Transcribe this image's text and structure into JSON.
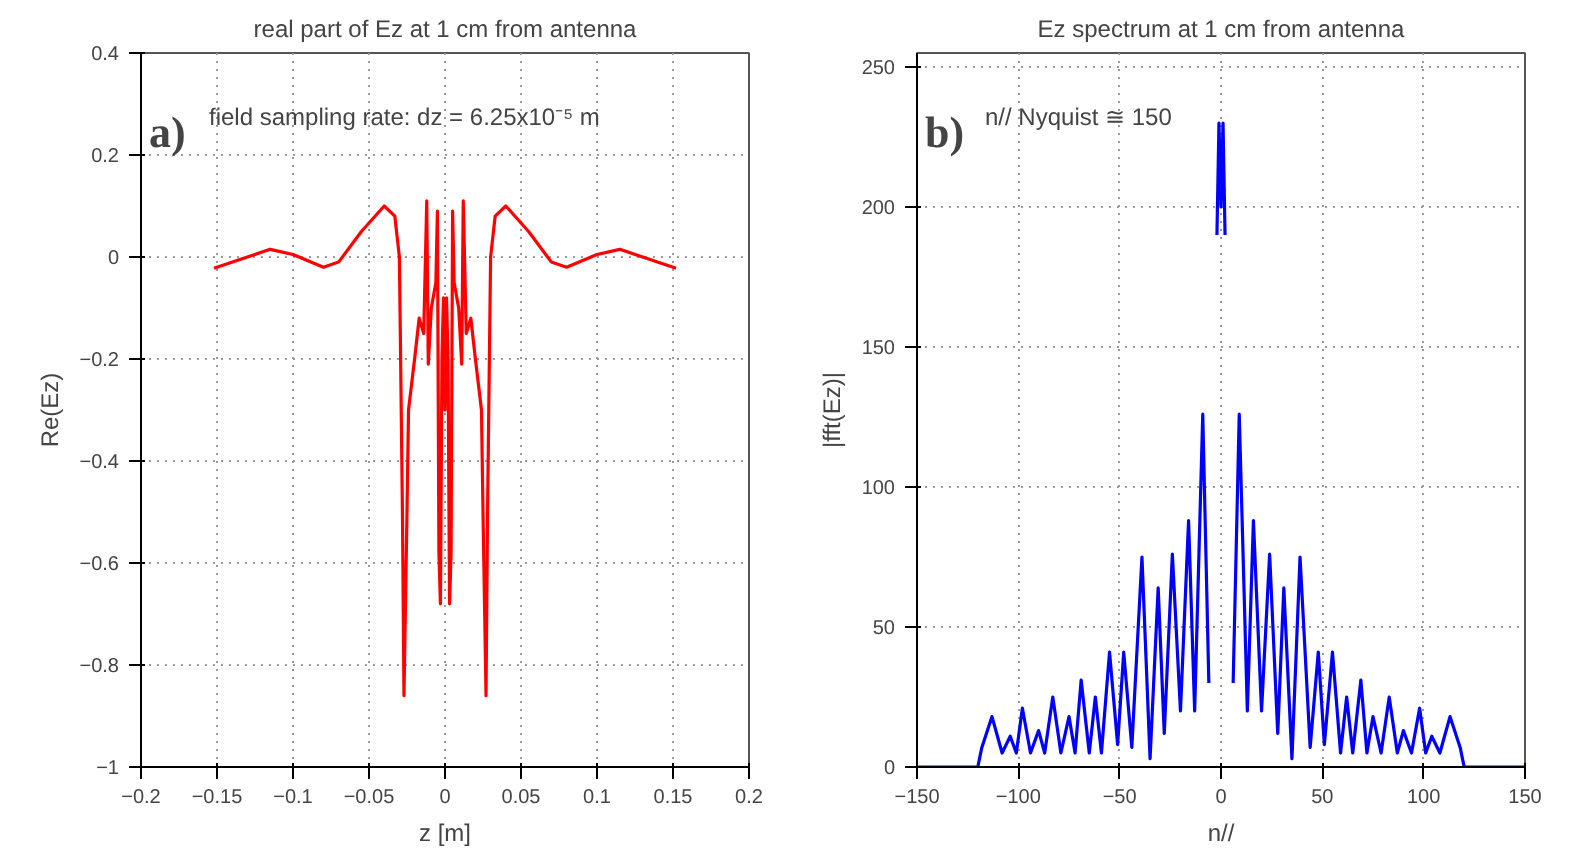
{
  "chart_data": [
    {
      "type": "line",
      "title": "real part of Ez at 1 cm from antenna",
      "xlabel": "z [m]",
      "ylabel": "Re(Ez)",
      "annotations": [
        "a)",
        "field sampling rate: dz = 6.25x10⁻⁵ m"
      ],
      "xlim": [
        -0.2,
        0.2
      ],
      "ylim": [
        -1,
        0.4
      ],
      "xticks": [
        -0.2,
        -0.15,
        -0.1,
        -0.05,
        0,
        0.05,
        0.1,
        0.15,
        0.2
      ],
      "yticks": [
        -1,
        -0.8,
        -0.6,
        -0.4,
        -0.2,
        0,
        0.2,
        0.4
      ],
      "grid": true,
      "line_style": "solid",
      "marker": "none",
      "series": [
        {
          "color": "#ff0000",
          "x": [
            -0.152,
            -0.13,
            -0.115,
            -0.1,
            -0.08,
            -0.07,
            -0.055,
            -0.04,
            -0.033,
            -0.03,
            -0.028,
            -0.027,
            -0.025,
            -0.024,
            -0.022,
            -0.02,
            -0.017,
            -0.014,
            -0.012,
            -0.011,
            -0.009,
            -0.006,
            -0.005,
            -0.004,
            -0.003,
            -0.002,
            -0.001,
            0,
            0.001,
            0.002,
            0.003,
            0.004,
            0.005,
            0.006,
            0.009,
            0.011,
            0.012,
            0.014,
            0.017,
            0.02,
            0.022,
            0.024,
            0.025,
            0.027,
            0.028,
            0.03,
            0.033,
            0.04,
            0.055,
            0.07,
            0.08,
            0.1,
            0.115,
            0.13,
            0.152
          ],
          "values": [
            -0.022,
            0.0,
            0.015,
            0.005,
            -0.02,
            -0.01,
            0.05,
            0.1,
            0.08,
            0.0,
            -0.5,
            -0.86,
            -0.5,
            -0.3,
            -0.25,
            -0.2,
            -0.12,
            -0.15,
            0.11,
            -0.21,
            -0.1,
            -0.05,
            0.09,
            -0.58,
            -0.68,
            -0.2,
            -0.08,
            -0.3,
            -0.08,
            -0.2,
            -0.68,
            -0.58,
            0.09,
            -0.05,
            -0.1,
            -0.21,
            0.11,
            -0.15,
            -0.12,
            -0.2,
            -0.25,
            -0.3,
            -0.5,
            -0.86,
            -0.5,
            0.0,
            0.08,
            0.1,
            0.05,
            -0.01,
            -0.02,
            0.005,
            0.015,
            0.0,
            -0.022
          ]
        }
      ]
    },
    {
      "type": "line",
      "title": "Ez spectrum at 1 cm from antenna",
      "xlabel": "n//",
      "ylabel": "|fft(Ez)|",
      "annotations": [
        "b)",
        "n// Nyquist ≅ 150"
      ],
      "xlim": [
        -150,
        150
      ],
      "ylim": [
        0,
        255
      ],
      "xticks": [
        -150,
        -100,
        -50,
        0,
        50,
        100,
        150
      ],
      "yticks": [
        0,
        50,
        100,
        150,
        200,
        250
      ],
      "grid": true,
      "line_style": "solid",
      "marker": "none",
      "series": [
        {
          "color": "#0000ff",
          "x": [
            -150,
            -120,
            -118,
            -113,
            -108,
            -104,
            -101,
            -98,
            -94,
            -90,
            -87,
            -83,
            -79,
            -75,
            -72,
            -69,
            -65,
            -62,
            -59,
            -55,
            -51,
            -48,
            -44,
            -39,
            -35,
            -31,
            -28,
            -24,
            -20,
            -16,
            -13,
            -9,
            -6,
            -3,
            -2,
            -1,
            0,
            1,
            2,
            3,
            6,
            9,
            13,
            16,
            20,
            24,
            28,
            31,
            35,
            39,
            44,
            48,
            51,
            55,
            59,
            62,
            65,
            69,
            72,
            75,
            79,
            83,
            87,
            90,
            94,
            98,
            101,
            104,
            108,
            113,
            118,
            120,
            150
          ],
          "values": [
            0,
            0,
            7,
            18,
            5,
            11,
            5,
            21,
            5,
            13,
            5,
            25,
            5,
            18,
            5,
            31,
            5,
            25,
            5,
            41,
            8,
            41,
            7,
            75,
            3,
            64,
            12,
            76,
            20,
            88,
            20,
            126,
            30,
            null,
            190,
            230,
            200,
            230,
            190,
            null,
            30,
            126,
            20,
            88,
            20,
            76,
            12,
            64,
            3,
            75,
            7,
            41,
            8,
            41,
            5,
            25,
            5,
            31,
            5,
            18,
            5,
            25,
            5,
            13,
            5,
            21,
            5,
            11,
            5,
            18,
            7,
            0,
            0
          ]
        }
      ]
    }
  ]
}
